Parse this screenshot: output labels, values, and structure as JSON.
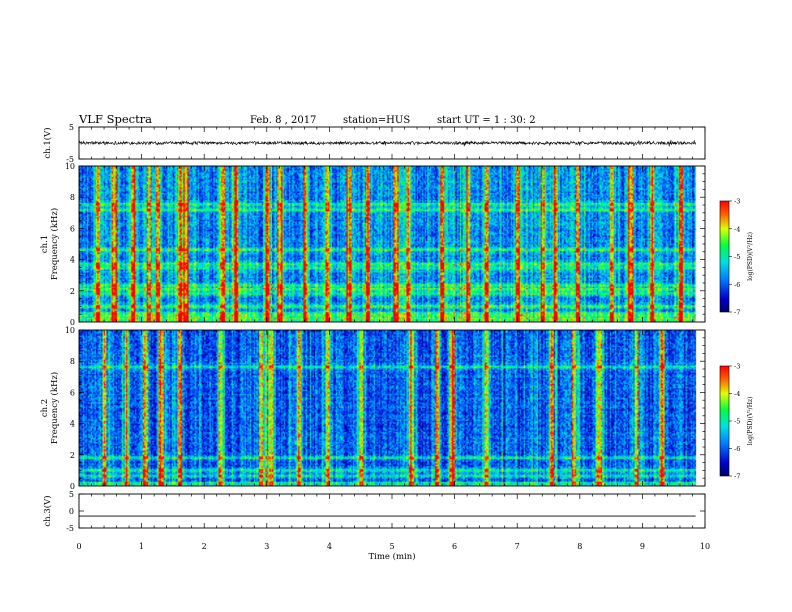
{
  "header": {
    "title": "VLF Spectra",
    "date": "Feb. 8 , 2017",
    "station": "station=HUS",
    "start": "start UT = 1 : 30: 2"
  },
  "chart_data": [
    {
      "type": "line",
      "name": "ch1-waveform",
      "ylabel": "ch.1(V)",
      "ylim": [
        -5,
        5
      ],
      "yticks": [
        "5",
        "-5"
      ],
      "xlim": [
        0,
        10
      ],
      "level": 0.0
    },
    {
      "type": "heatmap",
      "name": "ch1-spectrogram",
      "ylabel": "ch.1\nFrequency (kHz)",
      "ylabel_lines": [
        "ch.1",
        "Frequency (kHz)"
      ],
      "ylim": [
        0,
        10
      ],
      "yticks": [
        "0",
        "2",
        "4",
        "6",
        "8",
        "10"
      ],
      "xlim": [
        0,
        10
      ],
      "data_end_min": 9.85,
      "colorbar": {
        "label": "log(PSD)(V²/Hz)",
        "range": [
          -7,
          -3
        ],
        "ticks": [
          "-3",
          "-4",
          "-5",
          "-6",
          "-7"
        ]
      },
      "level": 0.55,
      "horizontal_lines_khz": [
        0.3,
        0.5,
        1.0,
        1.8,
        2.1,
        2.3,
        3.4,
        3.7,
        4.6,
        7.2,
        7.6
      ],
      "vertical_bursts_min": [
        0.3,
        0.55,
        0.85,
        1.1,
        1.25,
        1.6,
        1.7,
        2.3,
        2.5,
        3.0,
        3.2,
        3.6,
        3.95,
        4.3,
        4.6,
        5.05,
        5.25,
        5.8,
        6.2,
        6.5,
        7.0,
        7.4,
        7.6,
        7.95,
        8.5,
        8.8,
        9.15,
        9.6
      ]
    },
    {
      "type": "heatmap",
      "name": "ch2-spectrogram",
      "ylabel": "ch.2\nFrequency (kHz)",
      "ylabel_lines": [
        "ch.2",
        "Frequency (kHz)"
      ],
      "ylim": [
        0,
        10
      ],
      "yticks": [
        "0",
        "2",
        "4",
        "6",
        "8",
        "10"
      ],
      "xlim": [
        0,
        10
      ],
      "data_end_min": 9.85,
      "colorbar": {
        "label": "log(PSD)(V²/Hz)",
        "range": [
          -7,
          -3
        ],
        "ticks": [
          "-3",
          "-4",
          "-5",
          "-6",
          "-7"
        ]
      },
      "level": 0.3,
      "horizontal_lines_khz": [
        0.6,
        1.0,
        1.8,
        7.7
      ],
      "vertical_bursts_min": [
        0.4,
        0.75,
        1.05,
        1.3,
        1.6,
        2.25,
        2.9,
        3.05,
        3.5,
        3.95,
        4.5,
        5.3,
        5.7,
        5.95,
        6.5,
        7.55,
        7.9,
        8.3,
        8.9,
        9.3
      ]
    },
    {
      "type": "line",
      "name": "ch3-waveform",
      "ylabel": "ch.3(V)",
      "ylim": [
        -5,
        5
      ],
      "yticks": [
        "5",
        "0",
        "-5"
      ],
      "xlim": [
        0,
        10
      ],
      "xticks": [
        "0",
        "1",
        "2",
        "3",
        "4",
        "5",
        "6",
        "7",
        "8",
        "9",
        "10"
      ],
      "xlabel": "Time (min)",
      "level": -1.5
    }
  ]
}
